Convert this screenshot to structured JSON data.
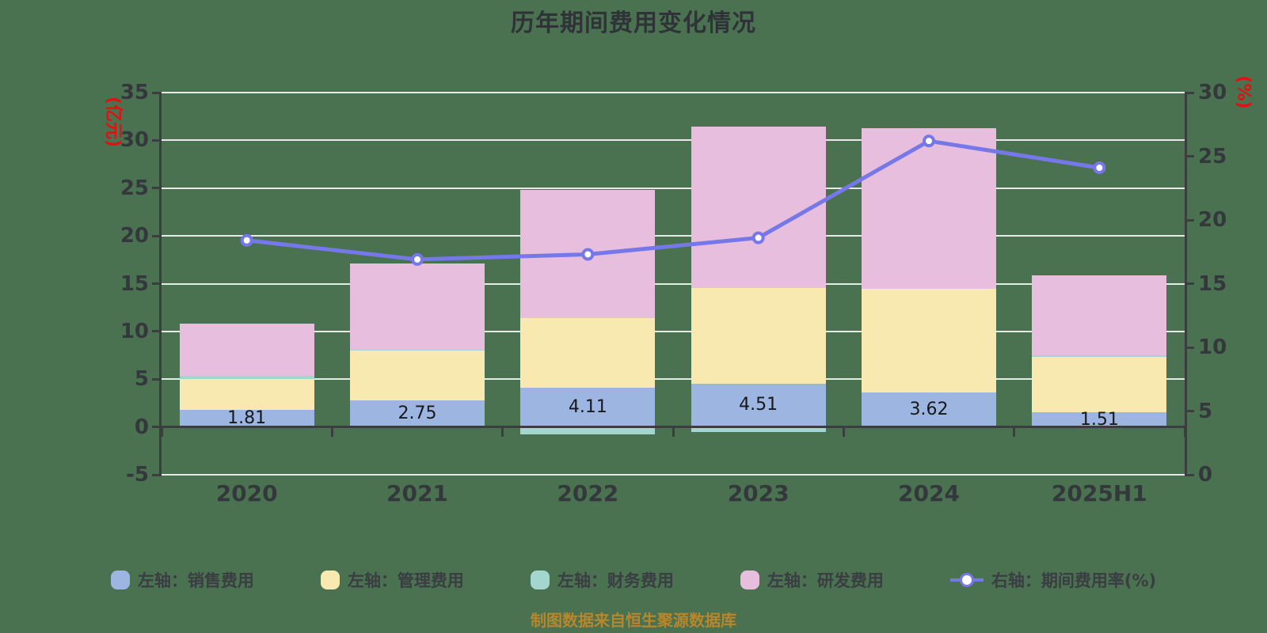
{
  "title": "历年期间费用变化情况",
  "caption": "制图数据来自恒生聚源数据库",
  "colors": {
    "background": "#4a7251",
    "title_text": "#2f3237",
    "axis_line": "#3b3d40",
    "tick_text": "#34373c",
    "gridline": "#e9e9e9",
    "axis_unit_text": "#e01111",
    "bar_label_text": "#17181a",
    "caption_text": "#b8862b",
    "legend_text": "#3a3d42",
    "sales_bar": "#9db5e1",
    "management_bar": "#f7e9af",
    "finance_bar": "#a3d6cf",
    "rnd_bar": "#e7bedd",
    "rate_line": "#7678ea",
    "marker_fill": "#ffffff"
  },
  "chart_data": {
    "type": "stacked-bar-with-line",
    "title": "历年期间费用变化情况",
    "categories": [
      "2020",
      "2021",
      "2022",
      "2023",
      "2024",
      "2025H1"
    ],
    "bar_labels": [
      "1.81",
      "2.75",
      "4.11",
      "4.51",
      "3.62",
      "1.51"
    ],
    "left_axis": {
      "unit": "(亿元)",
      "min": -5,
      "max": 35,
      "tick_step": 5,
      "ticks": [
        35,
        30,
        25,
        20,
        15,
        10,
        5,
        0,
        -5
      ]
    },
    "right_axis": {
      "unit": "(%)",
      "min": 0,
      "max": 30,
      "tick_step": 5,
      "ticks": [
        30,
        25,
        20,
        15,
        10,
        5,
        0
      ]
    },
    "grid": true,
    "legend_position": "bottom",
    "series": [
      {
        "key": "sales",
        "name": "左轴：销售费用",
        "type": "bar",
        "axis": "left",
        "color": "#9db5e1",
        "values": [
          1.81,
          2.75,
          4.11,
          4.51,
          3.62,
          1.51
        ]
      },
      {
        "key": "management",
        "name": "左轴：管理费用",
        "type": "bar",
        "axis": "left",
        "color": "#f7e9af",
        "values": [
          3.19,
          5.3,
          7.3,
          10.07,
          10.88,
          5.82
        ]
      },
      {
        "key": "finance",
        "name": "左轴：财务费用",
        "type": "bar",
        "axis": "left",
        "color": "#a3d6cf",
        "values": [
          0.36,
          0.05,
          -0.75,
          -0.5,
          -0.1,
          0.2
        ]
      },
      {
        "key": "rnd",
        "name": "左轴：研发费用",
        "type": "bar",
        "axis": "left",
        "color": "#e7bedd",
        "values": [
          5.47,
          9.0,
          13.4,
          16.83,
          16.77,
          8.38
        ]
      },
      {
        "key": "rate",
        "name": "右轴：期间费用率(%)",
        "type": "line",
        "axis": "right",
        "color": "#7678ea",
        "values": [
          18.4,
          16.9,
          17.3,
          18.6,
          26.2,
          24.1
        ]
      }
    ]
  }
}
